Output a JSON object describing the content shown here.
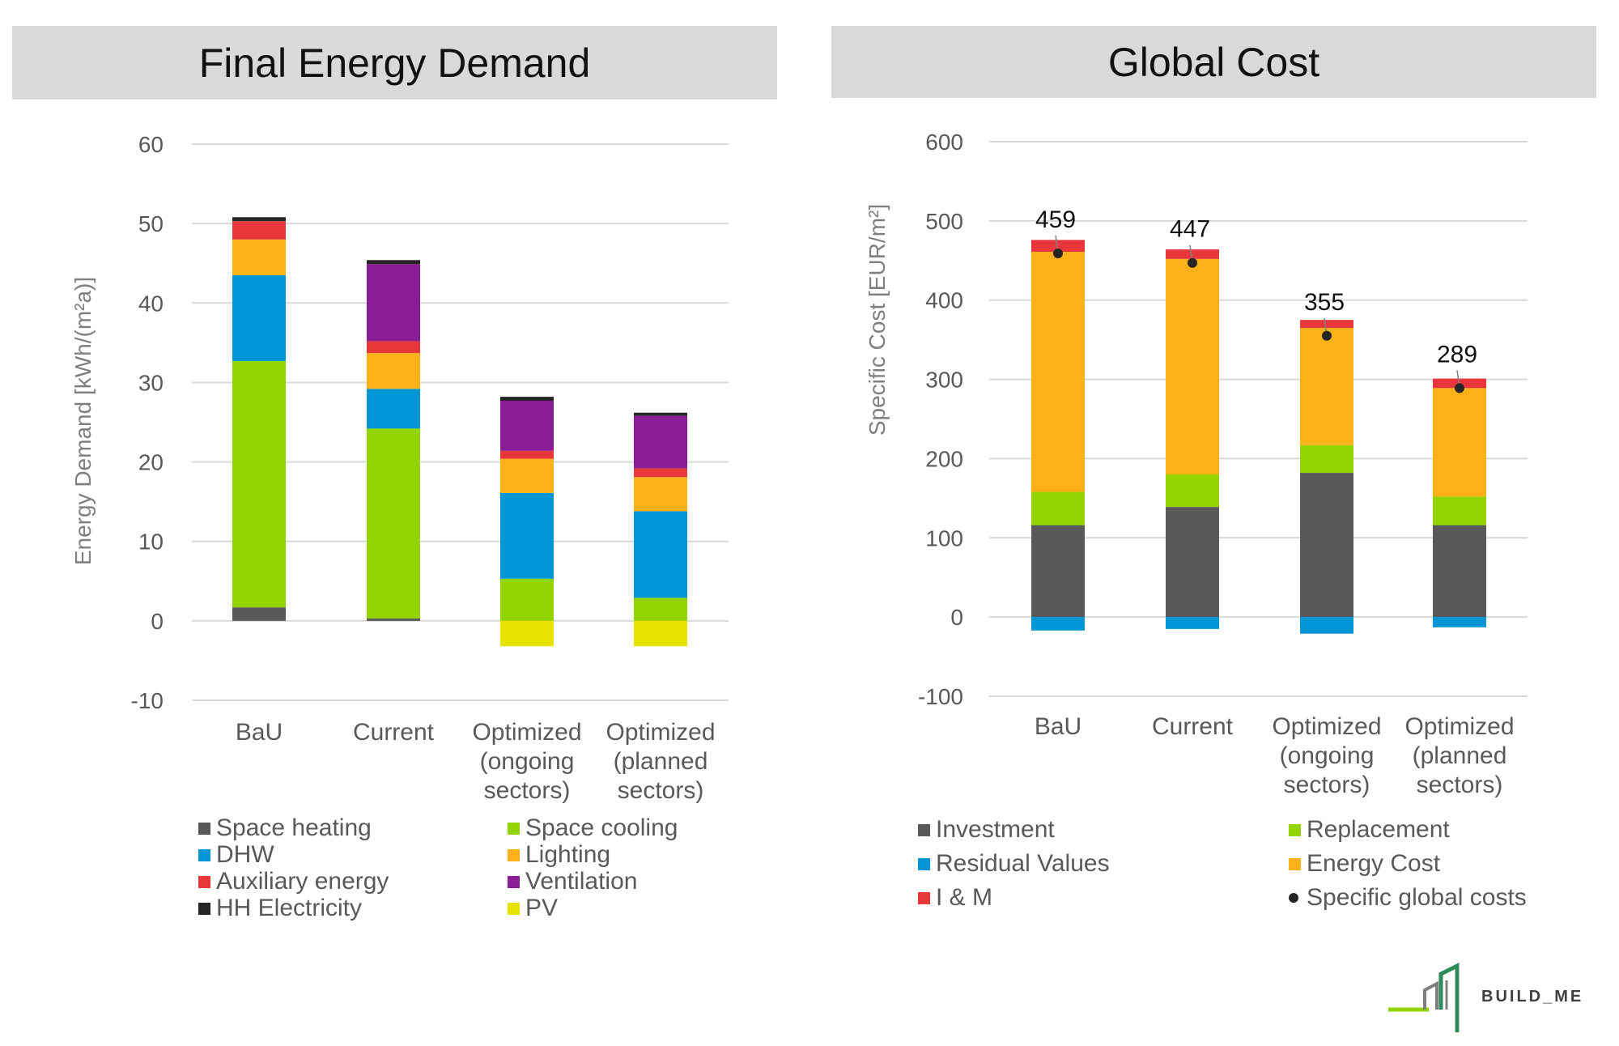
{
  "chart_data": [
    {
      "type": "bar",
      "stacked": true,
      "title": "Final Energy Demand",
      "ylabel": "Energy Demand [kWh/(m²a)]",
      "ylim": [
        -10,
        60
      ],
      "yticks": [
        "60",
        "50",
        "40",
        "30",
        "20",
        "10",
        "0",
        "-10"
      ],
      "grid": true,
      "legend_position": "bottom",
      "categories": [
        [
          "BaU"
        ],
        [
          "Current"
        ],
        [
          "Optimized",
          "(ongoing",
          "sectors)"
        ],
        [
          "Optimized",
          "(planned",
          "sectors)"
        ]
      ],
      "series": [
        {
          "name": "Space heating",
          "color": "#595959",
          "values": [
            1.7,
            0.3,
            0,
            0
          ]
        },
        {
          "name": "Space cooling",
          "color": "#92d300",
          "values": [
            31,
            23.9,
            5.3,
            2.9
          ]
        },
        {
          "name": "DHW",
          "color": "#0095d4",
          "values": [
            10.8,
            5,
            10.8,
            10.9
          ]
        },
        {
          "name": "Lighting",
          "color": "#fbb117",
          "values": [
            4.5,
            4.5,
            4.3,
            4.3
          ]
        },
        {
          "name": "Auxiliary energy",
          "color": "#e8373a",
          "values": [
            2.3,
            1.5,
            1,
            1.1
          ]
        },
        {
          "name": "Ventilation",
          "color": "#8a1d96",
          "values": [
            0,
            9.7,
            6.3,
            6.6
          ]
        },
        {
          "name": "HH Electricity",
          "color": "#262626",
          "values": [
            0.5,
            0.5,
            0.5,
            0.4
          ]
        },
        {
          "name": "PV",
          "color": "#e8e200",
          "values": [
            0,
            0,
            -3.2,
            -3.2
          ]
        }
      ],
      "legend": [
        [
          "Space heating",
          "Space cooling"
        ],
        [
          "DHW",
          "Lighting"
        ],
        [
          "Auxiliary energy",
          "Ventilation"
        ],
        [
          "HH Electricity",
          "PV"
        ]
      ]
    },
    {
      "type": "bar",
      "stacked": true,
      "title": "Global Cost",
      "ylabel": "Specific Cost [EUR/m²]",
      "ylim": [
        -100,
        600
      ],
      "yticks": [
        "600",
        "500",
        "400",
        "300",
        "200",
        "100",
        "0",
        "-100"
      ],
      "grid": true,
      "legend_position": "bottom",
      "categories": [
        [
          "BaU"
        ],
        [
          "Current"
        ],
        [
          "Optimized",
          "(ongoing",
          "sectors)"
        ],
        [
          "Optimized",
          "(planned",
          "sectors)"
        ]
      ],
      "series": [
        {
          "name": "Investment",
          "color": "#595959",
          "values": [
            116,
            139,
            182,
            116
          ]
        },
        {
          "name": "Replacement",
          "color": "#92d300",
          "values": [
            42,
            41,
            35,
            36
          ]
        },
        {
          "name": "Energy Cost",
          "color": "#fbb117",
          "values": [
            303,
            272,
            148,
            137
          ]
        },
        {
          "name": "I & M",
          "color": "#e8373a",
          "values": [
            15,
            12,
            10,
            12
          ]
        },
        {
          "name": "Residual Values",
          "color": "#0095d4",
          "values": [
            -17,
            -15,
            -21,
            -13
          ]
        }
      ],
      "markers": {
        "name": "Specific global costs",
        "color": "#262626",
        "values": [
          459,
          447,
          355,
          289
        ],
        "labels": [
          "459",
          "447",
          "355",
          "289"
        ]
      },
      "legend": [
        [
          "Investment",
          "Replacement"
        ],
        [
          "Residual Values",
          "Energy Cost"
        ],
        [
          "I & M",
          "Specific global costs"
        ]
      ]
    }
  ],
  "logo": {
    "text": "BUILD_ME"
  }
}
